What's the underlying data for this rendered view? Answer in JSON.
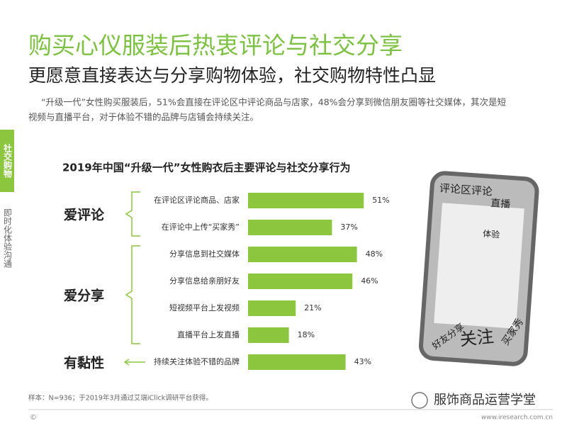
{
  "title": "购买心仪服装后热衷评论与社交分享",
  "subtitle": "更愿意直接表达与分享购物体验，社交购物特性凸显",
  "description": [
    "“升级一代”女性购买服装后，51%会直接在评论区中评论商品与店家，48%会分享到微信朋友圈等社交媒体，其次是短",
    "视频与直播平台，对于体验不错的品牌与店铺会持续关注。"
  ],
  "sidebar": {
    "active": "社交购物",
    "inactive": "即时化体验沟通"
  },
  "chart_data": {
    "type": "bar",
    "orientation": "horizontal",
    "title": "2019年中国“升级一代”女性购衣后主要评论与社交分享行为",
    "categories": [
      "在评论区评论商品、店家",
      "在评论中上传“买家秀”",
      "分享信息到社交媒体",
      "分享信息给亲朋好友",
      "短视频平台上发视频",
      "直播平台上发直播",
      "持续关注体验不错的品牌"
    ],
    "values": [
      51,
      37,
      48,
      46,
      21,
      18,
      43
    ],
    "value_labels": [
      "51%",
      "37%",
      "48%",
      "46%",
      "21%",
      "18%",
      "43%"
    ],
    "groups": [
      "爱评论",
      "爱分享",
      "有黏性"
    ],
    "color": "#8cc63f"
  },
  "word_cloud": [
    "评论区评论",
    "直播",
    "体验",
    "买家秀",
    "好友分享",
    "关注"
  ],
  "footnote": "样本：N=936；于2019年3月通过艾瑞iClick调研平台获得。",
  "watermark": "服饰商品运营学堂",
  "copyright": "©",
  "url": "www.iresearch.com.cn"
}
